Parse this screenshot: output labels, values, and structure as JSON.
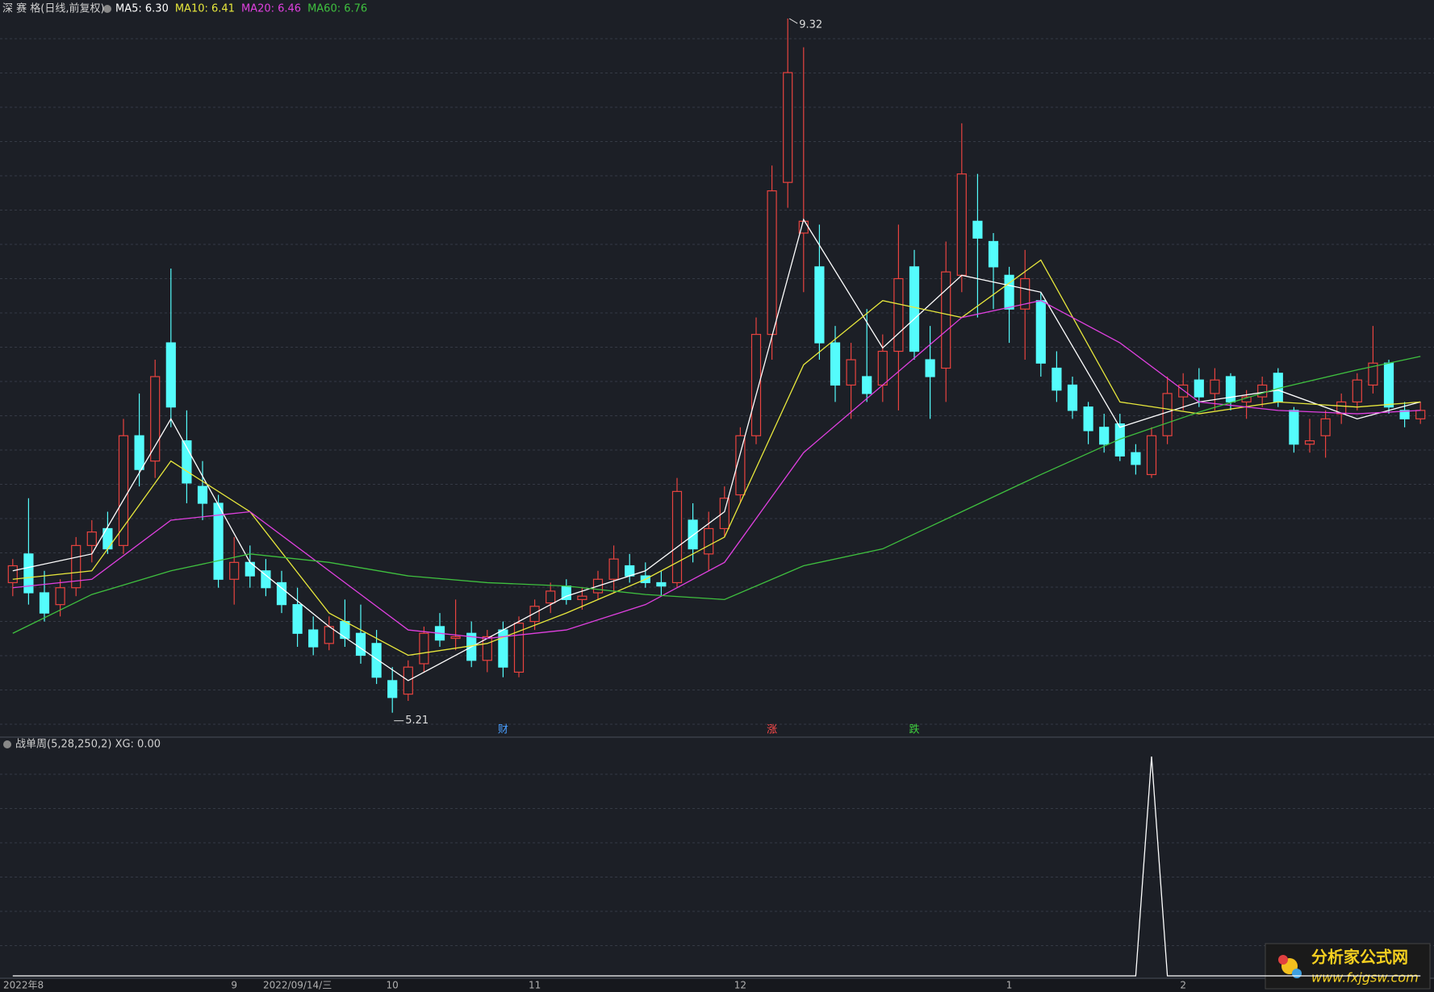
{
  "chart_data": [
    {
      "type": "candlestick",
      "title": "深 赛 格(日线,前复权)",
      "categories": [
        "2022年8",
        null,
        null,
        null,
        null,
        null,
        null,
        null,
        null,
        null,
        null,
        null,
        null,
        null,
        "9",
        null,
        null,
        null,
        "2022/09/14/三",
        null,
        null,
        null,
        null,
        null,
        "10",
        null,
        null,
        null,
        null,
        null,
        null,
        null,
        null,
        "11",
        null,
        null,
        null,
        null,
        null,
        null,
        null,
        null,
        null,
        null,
        null,
        null,
        "12",
        null,
        null,
        null,
        null,
        null,
        null,
        null,
        null,
        null,
        null,
        null,
        null,
        null,
        null,
        null,
        null,
        "1",
        null,
        null,
        null,
        null,
        null,
        null,
        null,
        null,
        null,
        null,
        "2",
        null,
        null,
        null,
        null,
        null,
        null,
        null,
        null,
        null,
        null,
        null,
        null,
        null,
        null,
        null
      ],
      "event_labels": [
        null,
        null,
        null,
        null,
        null,
        null,
        null,
        null,
        null,
        null,
        null,
        null,
        null,
        null,
        null,
        null,
        null,
        null,
        null,
        null,
        null,
        null,
        null,
        null,
        null,
        null,
        null,
        null,
        null,
        null,
        null,
        "财",
        null,
        null,
        null,
        null,
        null,
        null,
        null,
        null,
        null,
        null,
        null,
        null,
        null,
        null,
        null,
        null,
        "涨",
        null,
        null,
        null,
        null,
        null,
        null,
        null,
        null,
        "跌",
        null,
        null,
        null,
        null,
        null,
        null,
        null,
        null,
        null,
        null,
        null,
        null,
        null,
        null,
        null,
        null,
        null,
        null,
        null,
        null,
        null,
        null,
        null,
        null,
        null,
        null,
        null,
        null,
        null,
        null,
        null,
        null
      ],
      "event_colors": [
        null,
        null,
        null,
        null,
        null,
        null,
        null,
        null,
        null,
        null,
        null,
        null,
        null,
        null,
        null,
        null,
        null,
        null,
        null,
        null,
        null,
        null,
        null,
        null,
        null,
        null,
        null,
        null,
        null,
        null,
        null,
        "#4a9fff",
        null,
        null,
        null,
        null,
        null,
        null,
        null,
        null,
        null,
        null,
        null,
        null,
        null,
        null,
        null,
        null,
        "#ff4a4a",
        null,
        null,
        null,
        null,
        null,
        null,
        null,
        null,
        "#3fd03f",
        null,
        null,
        null,
        null,
        null,
        null,
        null,
        null,
        null,
        null,
        null,
        null,
        null,
        null,
        null,
        null,
        null,
        null,
        null,
        null,
        null,
        null,
        null,
        null,
        null,
        null,
        null,
        null,
        null,
        null,
        null,
        null
      ],
      "open": [
        5.98,
        6.15,
        5.92,
        5.85,
        5.95,
        6.2,
        6.3,
        6.2,
        6.85,
        6.7,
        7.4,
        6.82,
        6.55,
        6.45,
        6.0,
        6.1,
        6.05,
        5.98,
        5.85,
        5.7,
        5.62,
        5.75,
        5.68,
        5.62,
        5.4,
        5.32,
        5.5,
        5.72,
        5.65,
        5.68,
        5.52,
        5.7,
        5.45,
        5.75,
        5.86,
        5.96,
        5.88,
        5.92,
        6.0,
        6.08,
        6.02,
        5.98,
        5.98,
        6.35,
        6.15,
        6.3,
        6.5,
        6.85,
        7.45,
        8.35,
        8.05,
        7.85,
        7.4,
        7.15,
        7.2,
        7.15,
        7.35,
        7.85,
        7.3,
        7.25,
        7.8,
        8.12,
        8.0,
        7.8,
        7.6,
        7.65,
        7.25,
        7.15,
        7.02,
        6.9,
        6.92,
        6.75,
        6.62,
        6.85,
        7.08,
        7.18,
        7.1,
        7.2,
        7.05,
        7.08,
        7.22,
        7.0,
        6.8,
        6.85,
        6.98,
        7.05,
        7.15,
        7.28,
        7.0,
        6.95
      ],
      "high": [
        6.12,
        6.48,
        6.05,
        6.0,
        6.25,
        6.35,
        6.4,
        6.95,
        7.1,
        7.3,
        7.84,
        7.0,
        6.7,
        6.5,
        6.25,
        6.2,
        6.12,
        6.05,
        5.95,
        5.78,
        5.78,
        5.88,
        5.85,
        5.7,
        5.48,
        5.52,
        5.72,
        5.8,
        5.88,
        5.75,
        5.7,
        5.75,
        5.78,
        5.88,
        5.98,
        6.0,
        5.95,
        6.05,
        6.2,
        6.15,
        6.1,
        6.05,
        6.6,
        6.45,
        6.4,
        6.55,
        6.9,
        7.55,
        8.45,
        9.32,
        9.15,
        8.1,
        7.5,
        7.4,
        7.6,
        7.45,
        8.1,
        7.95,
        7.5,
        8.0,
        8.7,
        8.4,
        8.05,
        7.85,
        7.95,
        7.7,
        7.35,
        7.2,
        7.05,
        6.98,
        6.98,
        6.8,
        6.9,
        7.2,
        7.22,
        7.25,
        7.25,
        7.22,
        7.12,
        7.2,
        7.25,
        7.02,
        6.95,
        7.0,
        7.1,
        7.22,
        7.5,
        7.3,
        7.05,
        7.05
      ],
      "low": [
        5.9,
        5.85,
        5.75,
        5.78,
        5.9,
        6.1,
        6.15,
        6.15,
        6.55,
        6.6,
        6.9,
        6.45,
        6.35,
        5.95,
        5.85,
        5.95,
        5.9,
        5.8,
        5.6,
        5.55,
        5.58,
        5.6,
        5.5,
        5.38,
        5.21,
        5.28,
        5.45,
        5.6,
        5.58,
        5.48,
        5.45,
        5.42,
        5.42,
        5.7,
        5.8,
        5.85,
        5.82,
        5.88,
        5.92,
        5.98,
        5.95,
        5.9,
        5.95,
        6.1,
        6.05,
        6.25,
        6.45,
        6.8,
        7.3,
        8.2,
        7.7,
        7.3,
        7.05,
        6.95,
        7.05,
        7.05,
        7.0,
        7.3,
        6.95,
        7.05,
        7.7,
        7.55,
        7.6,
        7.4,
        7.3,
        7.2,
        7.05,
        6.95,
        6.8,
        6.75,
        6.7,
        6.62,
        6.6,
        6.8,
        7.0,
        7.02,
        7.0,
        7.0,
        6.95,
        7.02,
        7.02,
        6.75,
        6.75,
        6.72,
        6.92,
        7.0,
        7.1,
        6.98,
        6.9,
        6.92
      ],
      "close": [
        6.08,
        5.92,
        5.8,
        5.95,
        6.2,
        6.28,
        6.18,
        6.85,
        6.65,
        7.2,
        7.02,
        6.57,
        6.45,
        6.0,
        6.1,
        6.02,
        5.95,
        5.85,
        5.68,
        5.6,
        5.72,
        5.65,
        5.55,
        5.42,
        5.3,
        5.48,
        5.68,
        5.64,
        5.66,
        5.52,
        5.66,
        5.48,
        5.74,
        5.84,
        5.93,
        5.88,
        5.9,
        6.0,
        6.12,
        6.02,
        5.98,
        5.96,
        6.52,
        6.18,
        6.3,
        6.48,
        6.85,
        7.45,
        8.3,
        9.0,
        8.12,
        7.4,
        7.15,
        7.3,
        7.1,
        7.35,
        7.78,
        7.35,
        7.2,
        7.82,
        8.4,
        8.02,
        7.85,
        7.6,
        7.78,
        7.28,
        7.12,
        7.0,
        6.88,
        6.8,
        6.73,
        6.68,
        6.85,
        7.1,
        7.15,
        7.08,
        7.18,
        7.05,
        7.08,
        7.15,
        7.05,
        6.8,
        6.82,
        6.95,
        7.05,
        7.18,
        7.28,
        7.02,
        6.95,
        7.0
      ],
      "up_color": "#e8433f",
      "down_color": "#54fcfc",
      "ylim": [
        5.07,
        9.43
      ],
      "annotations": {
        "max": "9.32",
        "min": "5.21"
      },
      "series": [
        {
          "name": "MA5: 6.30",
          "color": "#ffffff",
          "x": [
            0,
            5,
            10,
            15,
            20,
            25,
            30,
            35,
            40,
            45,
            50,
            55,
            60,
            65,
            70,
            75,
            80,
            85,
            89
          ],
          "values": [
            6.05,
            6.15,
            6.95,
            6.1,
            5.72,
            5.4,
            5.65,
            5.9,
            6.05,
            6.4,
            8.13,
            7.37,
            7.8,
            7.7,
            6.9,
            7.05,
            7.12,
            6.95,
            7.05
          ]
        },
        {
          "name": "MA10: 6.41",
          "color": "#e8e83c",
          "x": [
            0,
            5,
            10,
            15,
            20,
            25,
            30,
            35,
            40,
            45,
            50,
            55,
            60,
            65,
            70,
            75,
            80,
            85,
            89
          ],
          "values": [
            6.0,
            6.05,
            6.7,
            6.4,
            5.8,
            5.55,
            5.62,
            5.8,
            6.0,
            6.25,
            7.27,
            7.65,
            7.55,
            7.89,
            7.05,
            6.98,
            7.05,
            7.02,
            7.05
          ]
        },
        {
          "name": "MA20: 6.46",
          "color": "#e040e0",
          "x": [
            0,
            5,
            10,
            15,
            20,
            25,
            30,
            35,
            40,
            45,
            50,
            55,
            60,
            65,
            70,
            75,
            80,
            85,
            89
          ],
          "values": [
            5.95,
            6.0,
            6.35,
            6.4,
            6.05,
            5.7,
            5.65,
            5.7,
            5.85,
            6.1,
            6.75,
            7.15,
            7.55,
            7.65,
            7.4,
            7.05,
            7.0,
            6.98,
            7.0
          ]
        },
        {
          "name": "MA60: 6.76",
          "color": "#3fc03f",
          "x": [
            0,
            5,
            10,
            15,
            20,
            25,
            30,
            35,
            40,
            45,
            50,
            55,
            60,
            65,
            70,
            75,
            80,
            85,
            89
          ],
          "values": [
            5.68,
            5.91,
            6.05,
            6.15,
            6.1,
            6.02,
            5.98,
            5.96,
            5.91,
            5.88,
            6.08,
            6.18,
            6.4,
            6.62,
            6.83,
            6.99,
            7.13,
            7.24,
            7.32
          ]
        }
      ]
    },
    {
      "type": "line",
      "title": "战单周(5,28,250,2) XG: 0.00",
      "color": "#ffffff",
      "ylim": [
        0,
        1
      ],
      "values": [
        0,
        0,
        0,
        0,
        0,
        0,
        0,
        0,
        0,
        0,
        0,
        0,
        0,
        0,
        0,
        0,
        0,
        0,
        0,
        0,
        0,
        0,
        0,
        0,
        0,
        0,
        0,
        0,
        0,
        0,
        0,
        0,
        0,
        0,
        0,
        0,
        0,
        0,
        0,
        0,
        0,
        0,
        0,
        0,
        0,
        0,
        0,
        0,
        0,
        0,
        0,
        0,
        0,
        0,
        0,
        0,
        0,
        0,
        0,
        0,
        0,
        0,
        0,
        0,
        0,
        0,
        0,
        0,
        0,
        0,
        0,
        0,
        1,
        0,
        0,
        0,
        0,
        0,
        0,
        0,
        0,
        0,
        0,
        0,
        0,
        0,
        0,
        0,
        0,
        0
      ]
    }
  ],
  "watermark": {
    "name": "分析家公式网",
    "url": "www.fxjgsw.com"
  }
}
